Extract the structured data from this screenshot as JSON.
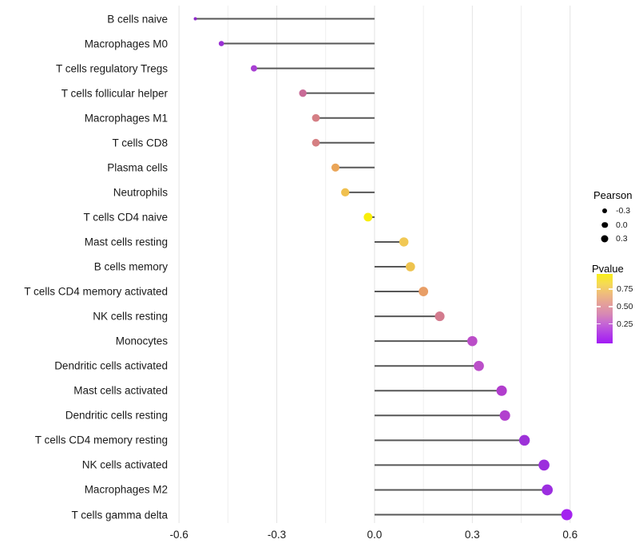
{
  "chart_data": {
    "type": "lollipop",
    "title": "",
    "xlabel": "",
    "ylabel": "",
    "grid": "vertical-only",
    "xlim": [
      -0.615,
      0.635
    ],
    "x_ticks": [
      {
        "value": -0.6,
        "label": "-0.6"
      },
      {
        "value": -0.3,
        "label": "-0.3"
      },
      {
        "value": 0.0,
        "label": "0.0"
      },
      {
        "value": 0.3,
        "label": "0.3"
      },
      {
        "value": 0.6,
        "label": "0.6"
      }
    ],
    "x_minor_ticks": [
      -0.45,
      -0.15,
      0.15,
      0.45
    ],
    "stick_color": "#575757",
    "grid_major_color": "#e3e3e3",
    "grid_minor_color": "#efefef",
    "points": [
      {
        "label": "B cells naive",
        "pearson": -0.55,
        "pvalue": 0.01,
        "color": "#8d28c9"
      },
      {
        "label": "Macrophages M0",
        "pearson": -0.47,
        "pvalue": 0.03,
        "color": "#9a30d4"
      },
      {
        "label": "T cells regulatory  Tregs",
        "pearson": -0.37,
        "pvalue": 0.07,
        "color": "#a83fd3"
      },
      {
        "label": "T cells follicular helper",
        "pearson": -0.22,
        "pvalue": 0.33,
        "color": "#c96b97"
      },
      {
        "label": "Macrophages M1",
        "pearson": -0.18,
        "pvalue": 0.4,
        "color": "#d57f85"
      },
      {
        "label": "T cells CD8",
        "pearson": -0.18,
        "pvalue": 0.41,
        "color": "#d57f82"
      },
      {
        "label": "Plasma cells",
        "pearson": -0.12,
        "pvalue": 0.56,
        "color": "#eaa558"
      },
      {
        "label": "Neutrophils",
        "pearson": -0.09,
        "pvalue": 0.68,
        "color": "#f0c04f"
      },
      {
        "label": "T cells CD4 naive",
        "pearson": -0.02,
        "pvalue": 0.93,
        "color": "#f8ee0a"
      },
      {
        "label": "Mast cells resting",
        "pearson": 0.09,
        "pvalue": 0.67,
        "color": "#f1c854"
      },
      {
        "label": "B cells memory",
        "pearson": 0.11,
        "pvalue": 0.64,
        "color": "#eec34e"
      },
      {
        "label": "T cells CD4 memory activated",
        "pearson": 0.15,
        "pvalue": 0.5,
        "color": "#e89e66"
      },
      {
        "label": "NK cells resting",
        "pearson": 0.2,
        "pvalue": 0.36,
        "color": "#d37b8e"
      },
      {
        "label": "Monocytes",
        "pearson": 0.3,
        "pvalue": 0.16,
        "color": "#bb4ec8"
      },
      {
        "label": "Dendritic cells activated",
        "pearson": 0.32,
        "pvalue": 0.15,
        "color": "#bb4fc9"
      },
      {
        "label": "Mast cells activated",
        "pearson": 0.39,
        "pvalue": 0.1,
        "color": "#b13dcd"
      },
      {
        "label": "Dendritic cells resting",
        "pearson": 0.4,
        "pvalue": 0.09,
        "color": "#b240ce"
      },
      {
        "label": "T cells CD4 memory resting",
        "pearson": 0.46,
        "pvalue": 0.04,
        "color": "#9d32d8"
      },
      {
        "label": "NK cells activated",
        "pearson": 0.52,
        "pvalue": 0.03,
        "color": "#9c2edd"
      },
      {
        "label": "Macrophages M2",
        "pearson": 0.53,
        "pvalue": 0.02,
        "color": "#9c2ee0"
      },
      {
        "label": "T cells gamma delta",
        "pearson": 0.59,
        "pvalue": 0.008,
        "color": "#a423ef"
      }
    ],
    "legend": {
      "position": "right",
      "size": {
        "title": "Pearson",
        "dot_color": "#000000",
        "items": [
          {
            "label": "-0.3",
            "diameter": 6
          },
          {
            "label": "0.0",
            "diameter": 7.5
          },
          {
            "label": "0.3",
            "diameter": 9
          }
        ]
      },
      "color": {
        "title": "Pvalue",
        "gradient_top_to_bottom": [
          "#f9ef18",
          "#f5da55",
          "#efbc7d",
          "#e4a099",
          "#d88ab2",
          "#c566d4",
          "#b23fe6",
          "#a21af5"
        ],
        "ticks": [
          {
            "label": "0.75",
            "frac_from_top": 0.22
          },
          {
            "label": "0.50",
            "frac_from_top": 0.47
          },
          {
            "label": "0.25",
            "frac_from_top": 0.72
          }
        ]
      }
    }
  }
}
